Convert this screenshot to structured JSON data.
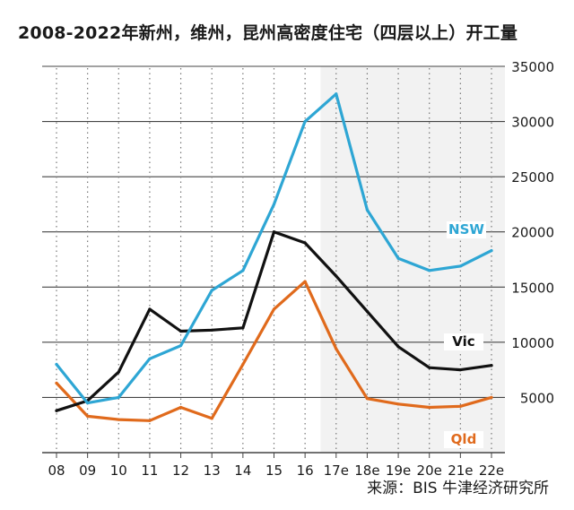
{
  "title": "2008-2022年新州，维州，昆州高密度住宅（四层以上）开工量",
  "source": "来源：BIS 牛津经济研究所",
  "colors": {
    "NSW": "#2ea6d4",
    "Vic": "#111111",
    "Qld": "#e06a1c",
    "grid": "#444444",
    "forecast_bg": "#f2f2f2"
  },
  "chart_data": {
    "type": "line",
    "title": "2008-2022年新州，维州，昆州高密度住宅（四层以上）开工量",
    "xlabel": "",
    "ylabel": "",
    "categories": [
      "08",
      "09",
      "10",
      "11",
      "12",
      "13",
      "14",
      "15",
      "16",
      "17e",
      "18e",
      "19e",
      "20e",
      "21e",
      "22e"
    ],
    "yticks": [
      5000,
      10000,
      15000,
      20000,
      25000,
      30000,
      35000
    ],
    "ylim": [
      0,
      35000
    ],
    "grid": "horizontal solid, vertical dotted",
    "legend": "inline labels at right",
    "forecast_start": "17e",
    "series": [
      {
        "name": "NSW",
        "values": [
          8000,
          4500,
          5000,
          8500,
          9700,
          14700,
          16500,
          22500,
          30000,
          32500,
          22000,
          17600,
          16500,
          16900,
          18300
        ]
      },
      {
        "name": "Vic",
        "values": [
          3800,
          4700,
          7300,
          13000,
          11000,
          11100,
          11300,
          20000,
          19000,
          16000,
          12800,
          9600,
          7700,
          7500,
          7900
        ]
      },
      {
        "name": "Qld",
        "values": [
          6300,
          3300,
          3000,
          2900,
          4100,
          3100,
          8000,
          13000,
          15500,
          9400,
          4900,
          4400,
          4100,
          4200,
          5000
        ]
      }
    ]
  }
}
